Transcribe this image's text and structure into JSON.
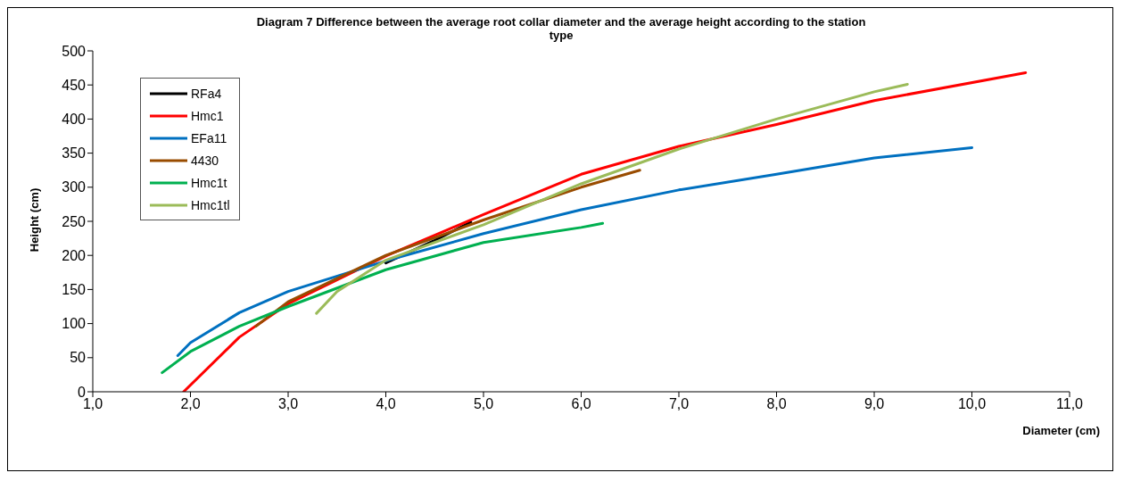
{
  "chart_data": {
    "type": "line",
    "title": "Diagram 7 Difference between the average root collar diameter and the average height according to the station type",
    "xlabel": "Diameter (cm)",
    "ylabel": "Height (cm)",
    "xlim": [
      1,
      11
    ],
    "xticks": [
      {
        "value": 1,
        "label": "1,0"
      },
      {
        "value": 2,
        "label": "2,0"
      },
      {
        "value": 3,
        "label": "3,0"
      },
      {
        "value": 4,
        "label": "4,0"
      },
      {
        "value": 5,
        "label": "5,0"
      },
      {
        "value": 6,
        "label": "6,0"
      },
      {
        "value": 7,
        "label": "7,0"
      },
      {
        "value": 8,
        "label": "8,0"
      },
      {
        "value": 9,
        "label": "9,0"
      },
      {
        "value": 10,
        "label": "10,0"
      },
      {
        "value": 11,
        "label": "11,0"
      }
    ],
    "ylim": [
      0,
      500
    ],
    "yticks": [
      0,
      50,
      100,
      150,
      200,
      250,
      300,
      350,
      400,
      450,
      500
    ],
    "grid": false,
    "legend": "top left",
    "marker": "none",
    "line_style": "solid",
    "series": [
      {
        "name": "RFa4",
        "color": "#000000",
        "x": [
          4.0,
          4.5,
          4.87
        ],
        "values": [
          189,
          222,
          249
        ]
      },
      {
        "name": "Hmc1",
        "color": "#ff0000",
        "x": [
          1.93,
          2.5,
          3.0,
          4.0,
          5.0,
          6.0,
          7.0,
          8.0,
          9.0,
          10.55
        ],
        "values": [
          0,
          80,
          129,
          199,
          260,
          319,
          360,
          392,
          427,
          468
        ]
      },
      {
        "name": "EFa11",
        "color": "#0070c0",
        "x": [
          1.87,
          2.0,
          2.5,
          3.0,
          4.0,
          5.0,
          6.0,
          7.0,
          8.0,
          9.0,
          10.0
        ],
        "values": [
          53,
          72,
          116,
          147,
          192,
          232,
          267,
          296,
          319,
          343,
          358
        ]
      },
      {
        "name": "4430",
        "color": "#994c00",
        "x": [
          2.67,
          3.0,
          4.0,
          5.0,
          6.0,
          6.6
        ],
        "values": [
          96,
          132,
          200,
          252,
          300,
          325
        ]
      },
      {
        "name": "Hmc1t",
        "color": "#00b050",
        "x": [
          1.71,
          2.0,
          2.5,
          3.0,
          4.0,
          5.0,
          6.0,
          6.22
        ],
        "values": [
          28,
          59,
          96,
          125,
          179,
          219,
          241,
          247
        ]
      },
      {
        "name": "Hmc1tl",
        "color": "#9bbb59",
        "x": [
          3.29,
          3.5,
          4.0,
          5.0,
          6.0,
          7.0,
          8.0,
          9.0,
          9.34
        ],
        "values": [
          115,
          147,
          193,
          245,
          305,
          356,
          400,
          440,
          451
        ]
      }
    ]
  }
}
